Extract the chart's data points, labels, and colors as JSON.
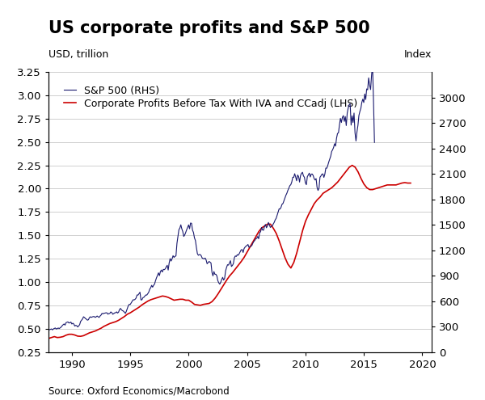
{
  "title": "US corporate profits and S&P 500",
  "ylabel_left": "USD, trillion",
  "ylabel_right": "Index",
  "source": "Source: Oxford Economics/Macrobond",
  "legend_sp500": "S&P 500 (RHS)",
  "legend_cp": "Corporate Profits Before Tax With IVA and CCadj (LHS)",
  "sp500_color": "#1a1a6e",
  "cp_color": "#CC0000",
  "ylim_left": [
    0.25,
    3.25
  ],
  "ylim_right": [
    0,
    3300
  ],
  "yticks_left": [
    0.25,
    0.5,
    0.75,
    1.0,
    1.25,
    1.5,
    1.75,
    2.0,
    2.25,
    2.5,
    2.75,
    3.0,
    3.25
  ],
  "yticks_right": [
    0,
    300,
    600,
    900,
    1200,
    1500,
    1800,
    2100,
    2400,
    2700,
    3000
  ],
  "xticks": [
    1990,
    1995,
    2000,
    2005,
    2010,
    2015,
    2020
  ],
  "xlim": [
    1988.0,
    2020.8
  ],
  "sp500_monthly": {
    "t0": 1988.0,
    "dt": 0.0833,
    "values": [
      258,
      262,
      267,
      272,
      261,
      272,
      278,
      283,
      271,
      276,
      283,
      276,
      285,
      294,
      309,
      321,
      330,
      317,
      346,
      351,
      355,
      342,
      345,
      353,
      330,
      339,
      330,
      306,
      314,
      310,
      295,
      307,
      322,
      360,
      375,
      390,
      415,
      407,
      394,
      387,
      375,
      380,
      404,
      415,
      408,
      414,
      417,
      418,
      408,
      415,
      424,
      415,
      408,
      424,
      435,
      455,
      450,
      457,
      458,
      462,
      462,
      446,
      453,
      454,
      472,
      465,
      445,
      452,
      461,
      463,
      473,
      459,
      470,
      500,
      514,
      497,
      487,
      482,
      468,
      455,
      480,
      514,
      545,
      562,
      560,
      580,
      598,
      616,
      614,
      621,
      636,
      672,
      671,
      687,
      705,
      614,
      615,
      640,
      645,
      658,
      672,
      671,
      687,
      705,
      740,
      757,
      786,
      764,
      786,
      801,
      841,
      875,
      902,
      933,
      900,
      947,
      966,
      943,
      974,
      970,
      980,
      1003,
      1022,
      966,
      1049,
      1101,
      1072,
      1098,
      1135,
      1115,
      1127,
      1133,
      1279,
      1362,
      1441,
      1461,
      1499,
      1452,
      1419,
      1362,
      1380,
      1409,
      1441,
      1469,
      1498,
      1452,
      1520,
      1517,
      1436,
      1409,
      1345,
      1314,
      1232,
      1160,
      1140,
      1148,
      1148,
      1133,
      1106,
      1101,
      1098,
      1107,
      1084,
      1040,
      1054,
      1067,
      1059,
      1049,
      938,
      897,
      948,
      916,
      916,
      898,
      841,
      815,
      800,
      822,
      855,
      880,
      848,
      868,
      957,
      997,
      1029,
      1024,
      1050,
      1076,
      1008,
      1020,
      1042,
      1111,
      1132,
      1126,
      1147,
      1141,
      1159,
      1181,
      1204,
      1207,
      1173,
      1219,
      1236,
      1248,
      1256,
      1267,
      1233,
      1243,
      1246,
      1255,
      1282,
      1303,
      1315,
      1336,
      1339,
      1362,
      1335,
      1406,
      1418,
      1468,
      1438,
      1435,
      1482,
      1503,
      1464,
      1487,
      1527,
      1497,
      1468,
      1481,
      1486,
      1509,
      1529,
      1558,
      1576,
      1614,
      1652,
      1687,
      1685,
      1707,
      1741,
      1751,
      1782,
      1816,
      1848,
      1872,
      1905,
      1931,
      1960,
      1972,
      2003,
      2059,
      2059,
      2101,
      2063,
      2018,
      2086,
      2068,
      2003,
      2079,
      2105,
      2118,
      2076,
      2059,
      1995,
      1972,
      2067,
      2086,
      2108,
      2063,
      2096,
      2098,
      2080,
      2043,
      2027,
      2044,
      1940,
      1904,
      1932,
      2060,
      2075,
      2096,
      2099,
      2058,
      2096,
      2168,
      2166,
      2199,
      2239,
      2274,
      2307,
      2363,
      2384,
      2411,
      2455,
      2427,
      2519,
      2575,
      2584,
      2674,
      2754,
      2705,
      2764,
      2786,
      2718,
      2775,
      2669,
      2816,
      2876,
      2914,
      2924,
      2674,
      2784,
      2705,
      2816,
      2584,
      2487,
      2594,
      2671,
      2787,
      2835,
      2872,
      2942,
      2980,
      2940,
      3041,
      2976,
      3101,
      3090,
      3231,
      3145,
      3093,
      3258,
      3386,
      2954,
      2470
    ]
  },
  "cp_quarterly": {
    "t0": 1988.0,
    "dt": 0.25,
    "values": [
      0.395,
      0.405,
      0.415,
      0.405,
      0.408,
      0.415,
      0.43,
      0.44,
      0.44,
      0.432,
      0.42,
      0.418,
      0.425,
      0.44,
      0.455,
      0.465,
      0.475,
      0.49,
      0.505,
      0.525,
      0.54,
      0.555,
      0.565,
      0.575,
      0.59,
      0.61,
      0.63,
      0.655,
      0.67,
      0.69,
      0.71,
      0.73,
      0.755,
      0.775,
      0.795,
      0.81,
      0.82,
      0.83,
      0.84,
      0.85,
      0.845,
      0.835,
      0.82,
      0.805,
      0.81,
      0.815,
      0.815,
      0.805,
      0.805,
      0.785,
      0.76,
      0.755,
      0.75,
      0.76,
      0.765,
      0.77,
      0.79,
      0.825,
      0.87,
      0.92,
      0.97,
      1.02,
      1.065,
      1.1,
      1.14,
      1.18,
      1.22,
      1.265,
      1.32,
      1.375,
      1.43,
      1.485,
      1.54,
      1.58,
      1.6,
      1.62,
      1.62,
      1.575,
      1.52,
      1.44,
      1.35,
      1.26,
      1.19,
      1.15,
      1.21,
      1.31,
      1.43,
      1.55,
      1.65,
      1.72,
      1.78,
      1.84,
      1.88,
      1.91,
      1.95,
      1.97,
      1.99,
      2.01,
      2.04,
      2.07,
      2.11,
      2.15,
      2.19,
      2.23,
      2.25,
      2.23,
      2.18,
      2.11,
      2.05,
      2.01,
      1.99,
      1.99,
      2.0,
      2.01,
      2.02,
      2.03,
      2.04,
      2.04,
      2.04,
      2.04,
      2.05,
      2.06,
      2.065,
      2.06,
      2.06
    ]
  },
  "background_color": "#ffffff",
  "grid_color": "#c8c8c8",
  "title_fontsize": 15,
  "label_fontsize": 9,
  "legend_fontsize": 9,
  "tick_fontsize": 9.5,
  "source_fontsize": 8.5
}
